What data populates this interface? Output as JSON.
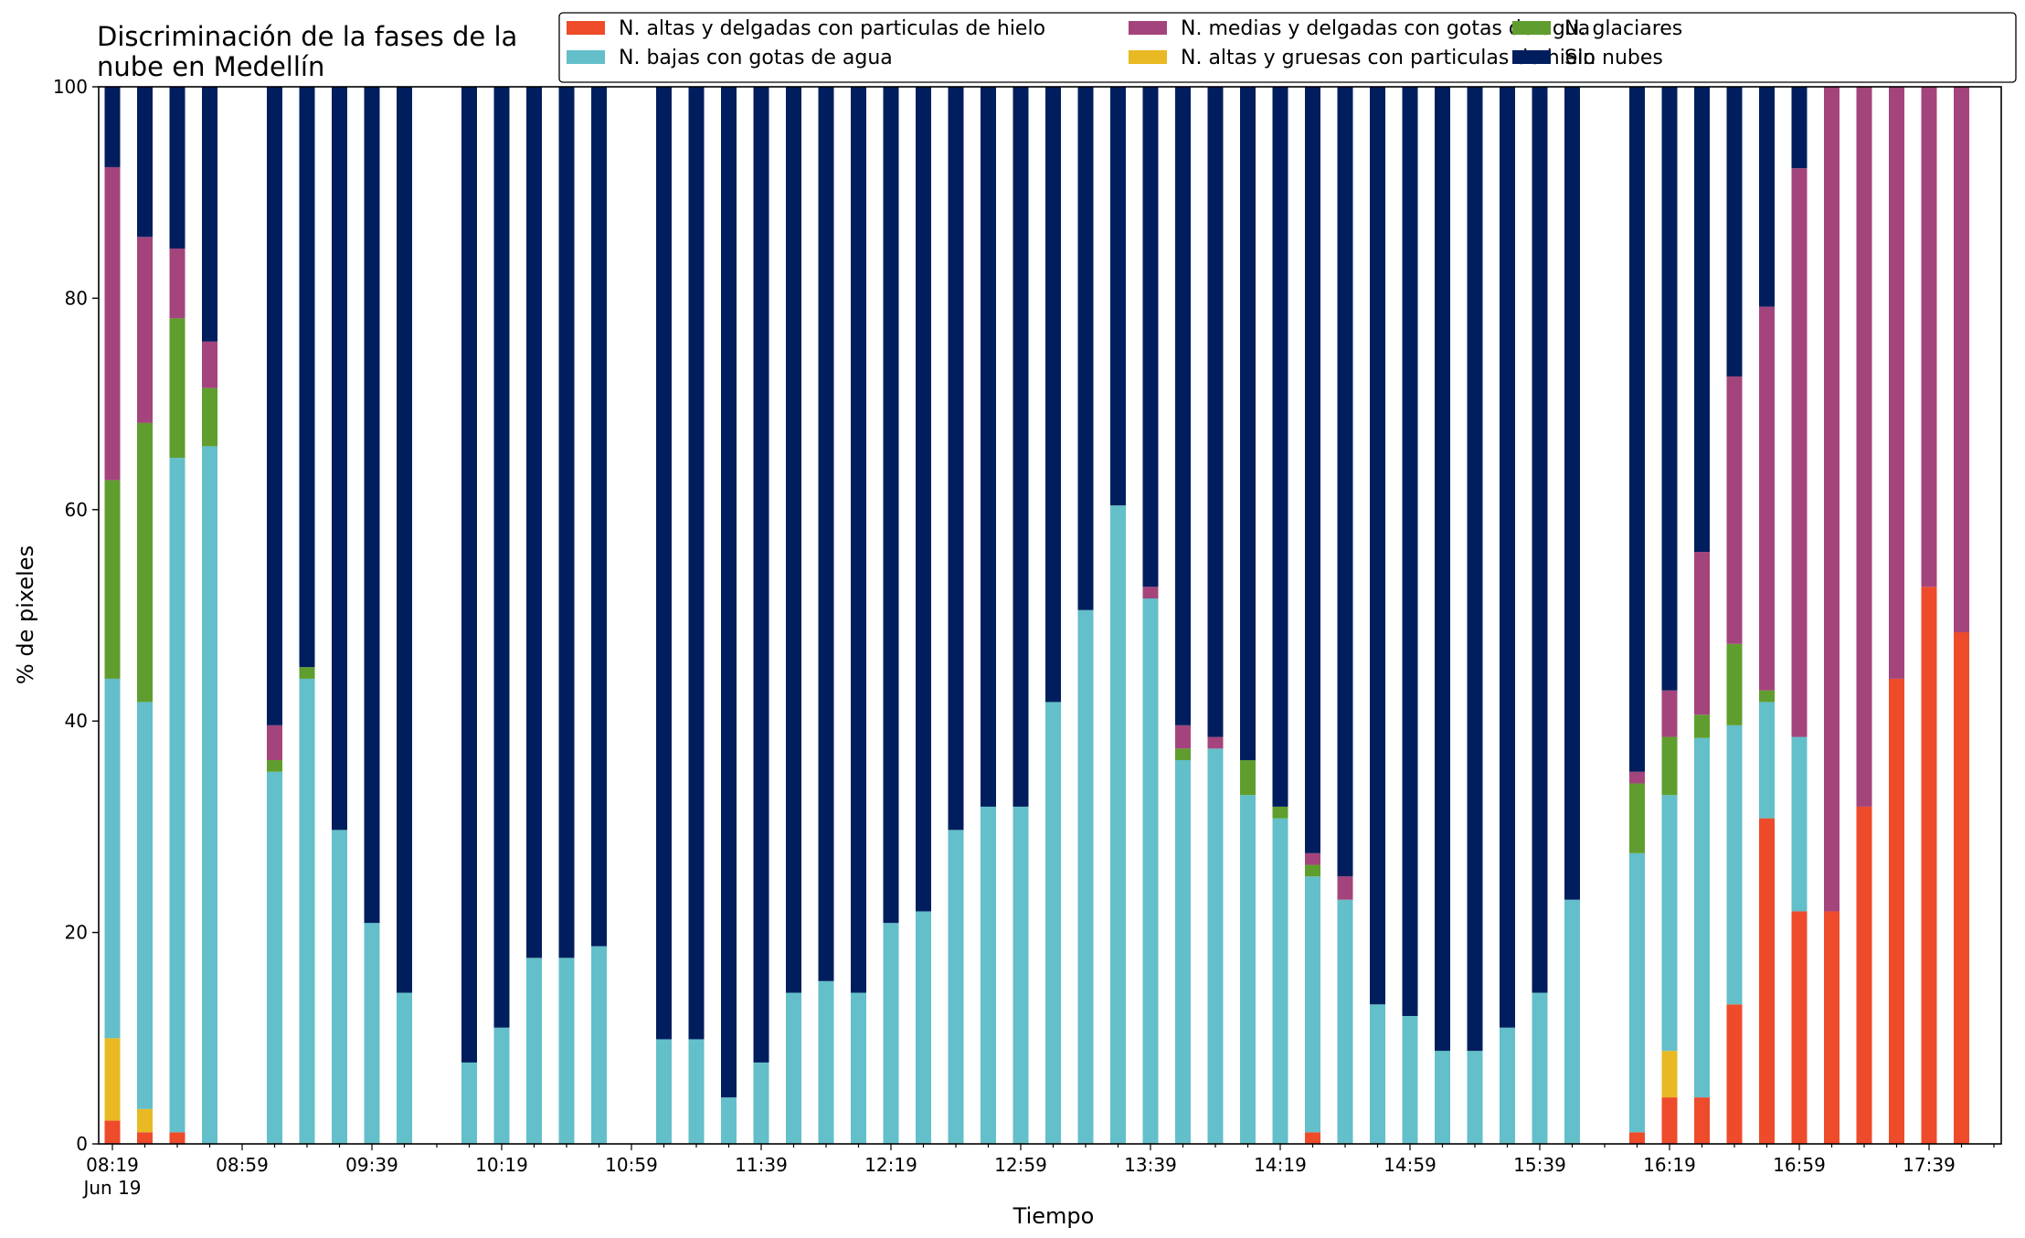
{
  "chart_data": {
    "type": "bar",
    "stacked": true,
    "title_lines": [
      "Discriminación de la fases de la",
      "nube en Medellín"
    ],
    "xlabel": "Tiempo",
    "ylabel": "% de pixeles",
    "ylim": [
      0,
      100
    ],
    "yticks": [
      0,
      20,
      40,
      60,
      80,
      100
    ],
    "x_tick_labels": [
      {
        "slot": 0,
        "label": "08:19",
        "sublabel": "Jun 19"
      },
      {
        "slot": 4,
        "label": "08:59"
      },
      {
        "slot": 8,
        "label": "09:39"
      },
      {
        "slot": 12,
        "label": "10:19"
      },
      {
        "slot": 16,
        "label": "10:59"
      },
      {
        "slot": 20,
        "label": "11:39"
      },
      {
        "slot": 24,
        "label": "12:19"
      },
      {
        "slot": 28,
        "label": "12:59"
      },
      {
        "slot": 32,
        "label": "13:39"
      },
      {
        "slot": 36,
        "label": "14:19"
      },
      {
        "slot": 40,
        "label": "14:59"
      },
      {
        "slot": 44,
        "label": "15:39"
      },
      {
        "slot": 48,
        "label": "16:19"
      },
      {
        "slot": 52,
        "label": "16:59"
      },
      {
        "slot": 56,
        "label": "17:39"
      }
    ],
    "slot_interval_minutes": 10,
    "slot_count": 59,
    "legend_placement": "top-right",
    "series": [
      {
        "name": "N. altas y delgadas con particulas de hielo",
        "color": "#ee4b2b"
      },
      {
        "name": "N. altas y gruesas con particulas de hielo",
        "color": "#e8b923"
      },
      {
        "name": "N. bajas con gotas de agua",
        "color": "#63bfc9"
      },
      {
        "name": "N. glaciares",
        "color": "#5f9e2e"
      },
      {
        "name": "N. medias y delgadas con gotas de agua",
        "color": "#a4447c"
      },
      {
        "name": "Sin nubes",
        "color": "#001e5e"
      }
    ],
    "legend_order": [
      0,
      2,
      4,
      1,
      3,
      5
    ],
    "bars": [
      {
        "slot": 0,
        "values": [
          2.2,
          7.8,
          34.0,
          18.8,
          29.6,
          7.6
        ]
      },
      {
        "slot": 1,
        "values": [
          1.1,
          2.2,
          38.5,
          26.4,
          17.6,
          14.2
        ]
      },
      {
        "slot": 2,
        "values": [
          1.1,
          0,
          63.8,
          13.2,
          6.6,
          15.3
        ]
      },
      {
        "slot": 3,
        "values": [
          0,
          0,
          66.0,
          5.5,
          4.4,
          24.1
        ]
      },
      {
        "slot": 5,
        "values": [
          0,
          0,
          35.2,
          1.1,
          3.3,
          60.4
        ]
      },
      {
        "slot": 6,
        "values": [
          0,
          0,
          44.0,
          1.1,
          0,
          54.9
        ]
      },
      {
        "slot": 7,
        "values": [
          0,
          0,
          29.7,
          0,
          0,
          70.3
        ]
      },
      {
        "slot": 8,
        "values": [
          0,
          0,
          20.9,
          0,
          0,
          79.1
        ]
      },
      {
        "slot": 9,
        "values": [
          0,
          0,
          14.3,
          0,
          0,
          85.7
        ]
      },
      {
        "slot": 11,
        "values": [
          0,
          0,
          7.7,
          0,
          0,
          92.3
        ]
      },
      {
        "slot": 12,
        "values": [
          0,
          0,
          11.0,
          0,
          0,
          89.0
        ]
      },
      {
        "slot": 13,
        "values": [
          0,
          0,
          17.6,
          0,
          0,
          82.4
        ]
      },
      {
        "slot": 14,
        "values": [
          0,
          0,
          17.6,
          0,
          0,
          82.4
        ]
      },
      {
        "slot": 15,
        "values": [
          0,
          0,
          18.7,
          0,
          0,
          81.3
        ]
      },
      {
        "slot": 17,
        "values": [
          0,
          0,
          9.9,
          0,
          0,
          90.1
        ]
      },
      {
        "slot": 18,
        "values": [
          0,
          0,
          9.9,
          0,
          0,
          90.1
        ]
      },
      {
        "slot": 19,
        "values": [
          0,
          0,
          4.4,
          0,
          0,
          95.6
        ]
      },
      {
        "slot": 20,
        "values": [
          0,
          0,
          7.7,
          0,
          0,
          92.3
        ]
      },
      {
        "slot": 21,
        "values": [
          0,
          0,
          14.3,
          0,
          0,
          85.7
        ]
      },
      {
        "slot": 22,
        "values": [
          0,
          0,
          15.4,
          0,
          0,
          84.6
        ]
      },
      {
        "slot": 23,
        "values": [
          0,
          0,
          14.3,
          0,
          0,
          85.7
        ]
      },
      {
        "slot": 24,
        "values": [
          0,
          0,
          20.9,
          0,
          0,
          79.1
        ]
      },
      {
        "slot": 25,
        "values": [
          0,
          0,
          22.0,
          0,
          0,
          78.0
        ]
      },
      {
        "slot": 26,
        "values": [
          0,
          0,
          29.7,
          0,
          0,
          70.3
        ]
      },
      {
        "slot": 27,
        "values": [
          0,
          0,
          31.9,
          0,
          0,
          68.1
        ]
      },
      {
        "slot": 28,
        "values": [
          0,
          0,
          31.9,
          0,
          0,
          68.1
        ]
      },
      {
        "slot": 29,
        "values": [
          0,
          0,
          41.8,
          0,
          0,
          58.2
        ]
      },
      {
        "slot": 30,
        "values": [
          0,
          0,
          50.5,
          0,
          0,
          49.5
        ]
      },
      {
        "slot": 31,
        "values": [
          0,
          0,
          60.4,
          0,
          0,
          39.6
        ]
      },
      {
        "slot": 32,
        "values": [
          0,
          0,
          51.6,
          0,
          1.1,
          47.3
        ]
      },
      {
        "slot": 33,
        "values": [
          0,
          0,
          36.3,
          1.1,
          2.2,
          60.4
        ]
      },
      {
        "slot": 34,
        "values": [
          0,
          0,
          37.4,
          0,
          1.1,
          61.5
        ]
      },
      {
        "slot": 35,
        "values": [
          0,
          0,
          33.0,
          3.3,
          0,
          63.7
        ]
      },
      {
        "slot": 36,
        "values": [
          0,
          0,
          30.8,
          1.1,
          0,
          68.1
        ]
      },
      {
        "slot": 37,
        "values": [
          1.1,
          0,
          24.2,
          1.1,
          1.1,
          72.5
        ]
      },
      {
        "slot": 38,
        "values": [
          0,
          0,
          23.1,
          0,
          2.2,
          74.7
        ]
      },
      {
        "slot": 39,
        "values": [
          0,
          0,
          13.2,
          0,
          0,
          86.8
        ]
      },
      {
        "slot": 40,
        "values": [
          0,
          0,
          12.1,
          0,
          0,
          87.9
        ]
      },
      {
        "slot": 41,
        "values": [
          0,
          0,
          8.8,
          0,
          0,
          91.2
        ]
      },
      {
        "slot": 42,
        "values": [
          0,
          0,
          8.8,
          0,
          0,
          91.2
        ]
      },
      {
        "slot": 43,
        "values": [
          0,
          0,
          11.0,
          0,
          0,
          89.0
        ]
      },
      {
        "slot": 44,
        "values": [
          0,
          0,
          14.3,
          0,
          0,
          85.7
        ]
      },
      {
        "slot": 45,
        "values": [
          0,
          0,
          23.1,
          0,
          0,
          76.9
        ]
      },
      {
        "slot": 47,
        "values": [
          1.1,
          0,
          26.4,
          6.6,
          1.1,
          64.8
        ]
      },
      {
        "slot": 48,
        "values": [
          4.4,
          4.4,
          24.2,
          5.5,
          4.4,
          57.1
        ]
      },
      {
        "slot": 49,
        "values": [
          4.4,
          0,
          34.0,
          2.2,
          15.4,
          44.0
        ]
      },
      {
        "slot": 50,
        "values": [
          13.2,
          0,
          26.4,
          7.7,
          25.3,
          27.4
        ]
      },
      {
        "slot": 51,
        "values": [
          30.8,
          0,
          11.0,
          1.1,
          36.3,
          20.8
        ]
      },
      {
        "slot": 52,
        "values": [
          22.0,
          0,
          16.5,
          0,
          53.8,
          7.7
        ]
      },
      {
        "slot": 53,
        "values": [
          22.0,
          0,
          0,
          0,
          78.0,
          0
        ]
      },
      {
        "slot": 54,
        "values": [
          31.9,
          0,
          0,
          0,
          68.1,
          0
        ]
      },
      {
        "slot": 55,
        "values": [
          44.0,
          0,
          0,
          0,
          56.0,
          0
        ]
      },
      {
        "slot": 56,
        "values": [
          52.7,
          0,
          0,
          0,
          47.3,
          0
        ]
      },
      {
        "slot": 57,
        "values": [
          48.4,
          0,
          0,
          0,
          51.6,
          0
        ]
      }
    ]
  }
}
